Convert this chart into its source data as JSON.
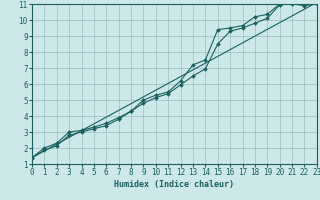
{
  "xlabel": "Humidex (Indice chaleur)",
  "bg_color": "#cce8e8",
  "grid_color": "#9bbfbf",
  "line_color": "#1a6060",
  "xmin": 0,
  "xmax": 23,
  "ymin": 1,
  "ymax": 11,
  "line1_x": [
    0,
    1,
    2,
    3,
    4,
    5,
    6,
    7,
    8,
    9,
    10,
    11,
    12,
    13,
    14,
    15,
    16,
    17,
    18,
    19,
    20,
    21,
    22,
    23
  ],
  "line1_y": [
    1.4,
    2.0,
    2.3,
    3.0,
    3.1,
    3.3,
    3.55,
    3.9,
    4.3,
    5.0,
    5.3,
    5.5,
    6.2,
    7.2,
    7.5,
    9.4,
    9.5,
    9.65,
    10.2,
    10.35,
    11.0,
    11.05,
    11.0,
    11.1
  ],
  "line2_x": [
    0,
    1,
    2,
    3,
    4,
    5,
    6,
    7,
    8,
    9,
    10,
    11,
    12,
    13,
    14,
    15,
    16,
    17,
    18,
    19,
    20,
    21,
    22,
    23
  ],
  "line2_y": [
    1.4,
    1.85,
    2.15,
    2.8,
    3.0,
    3.2,
    3.4,
    3.8,
    4.3,
    4.8,
    5.15,
    5.4,
    5.95,
    6.5,
    6.95,
    8.5,
    9.3,
    9.5,
    9.8,
    10.1,
    10.95,
    11.0,
    10.9,
    11.0
  ],
  "line3_x": [
    0,
    23
  ],
  "line3_y": [
    1.4,
    11.1
  ],
  "label_fontsize": 5.5,
  "xlabel_fontsize": 6.0
}
